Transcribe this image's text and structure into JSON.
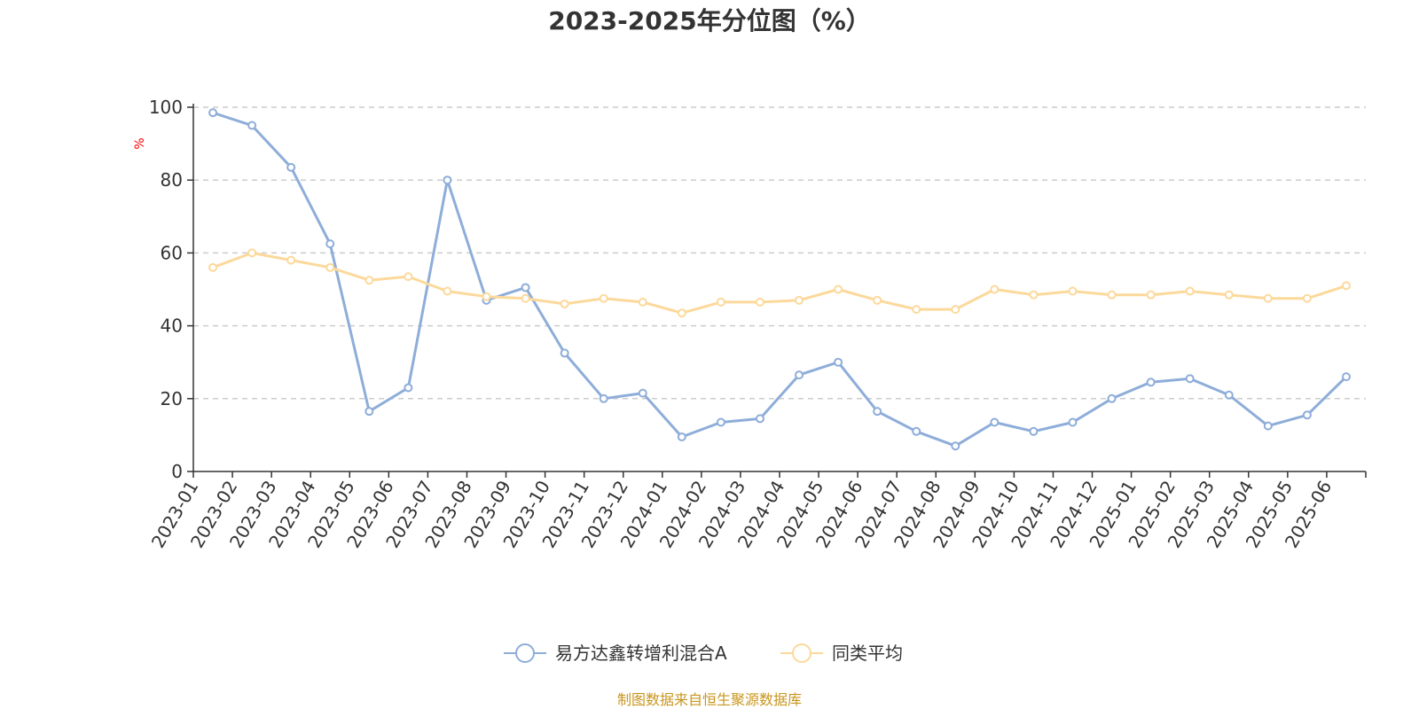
{
  "chart_data": {
    "type": "line",
    "title": "2023-2025年分位图（%）",
    "ylabel": "%",
    "ylim": [
      0,
      100
    ],
    "yticks": [
      0,
      20,
      40,
      60,
      80,
      100
    ],
    "categories": [
      "2023-01",
      "2023-02",
      "2023-03",
      "2023-04",
      "2023-05",
      "2023-06",
      "2023-07",
      "2023-08",
      "2023-09",
      "2023-10",
      "2023-11",
      "2023-12",
      "2024-01",
      "2024-02",
      "2024-03",
      "2024-04",
      "2024-05",
      "2024-06",
      "2024-07",
      "2024-08",
      "2024-09",
      "2024-10",
      "2024-11",
      "2024-12",
      "2025-01",
      "2025-02",
      "2025-03",
      "2025-04",
      "2025-05",
      "2025-06"
    ],
    "grid": "horizontal dashed",
    "legend_position": "bottom",
    "series": [
      {
        "name": "易方达鑫转增利混合A",
        "color": "#8eadd9",
        "values": [
          98.5,
          95,
          83.5,
          62.5,
          16.5,
          23,
          80,
          47,
          50.5,
          32.5,
          20,
          21.5,
          9.5,
          13.5,
          14.5,
          26.5,
          30,
          16.5,
          11,
          7,
          13.5,
          11,
          13.5,
          20,
          24.5,
          25.5,
          21,
          12.5,
          15.5,
          26
        ]
      },
      {
        "name": "同类平均",
        "color": "#fcd99b",
        "values": [
          56,
          60,
          58,
          56,
          52.5,
          53.5,
          49.5,
          48,
          47.5,
          46,
          47.5,
          46.5,
          43.5,
          46.5,
          46.5,
          47,
          50,
          47,
          44.5,
          44.5,
          50,
          48.5,
          49.5,
          48.5,
          48.5,
          49.5,
          48.5,
          47.5,
          47.5,
          51
        ]
      }
    ]
  },
  "source_note": "制图数据来自恒生聚源数据库"
}
